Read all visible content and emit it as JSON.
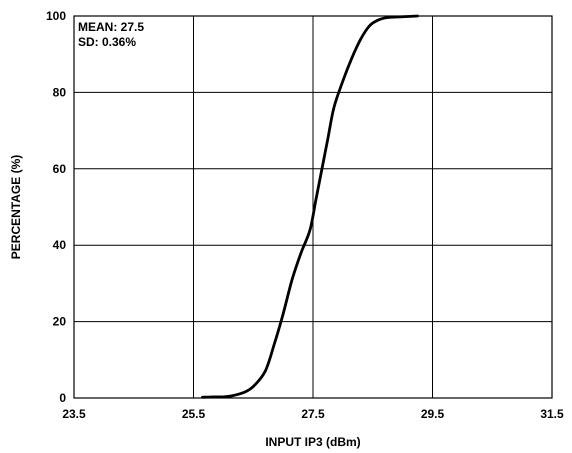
{
  "chart_data": {
    "type": "line",
    "title": "",
    "xlabel": "INPUT IP3 (dBm)",
    "ylabel": "PERCENTAGE (%)",
    "xlim": [
      23.5,
      31.5
    ],
    "ylim": [
      0,
      100
    ],
    "x_ticks": [
      23.5,
      25.5,
      27.5,
      29.5,
      31.5
    ],
    "x_tick_labels": [
      "23.5",
      "25.5",
      "27.5",
      "29.5",
      "31.5"
    ],
    "y_ticks": [
      0,
      20,
      40,
      60,
      80,
      100
    ],
    "y_tick_labels": [
      "0",
      "20",
      "40",
      "60",
      "80",
      "100"
    ],
    "grid": true,
    "annotations": [
      "MEAN: 27.5",
      "SD: 0.36%"
    ],
    "series": [
      {
        "x": [
          25.65,
          25.85,
          26.0,
          26.15,
          26.35,
          26.5,
          26.7,
          26.85,
          27.0,
          27.15,
          27.3,
          27.45,
          27.55,
          27.65,
          27.75,
          27.85,
          28.0,
          28.15,
          28.3,
          28.45,
          28.6,
          28.75,
          29.0,
          29.25
        ],
        "y": [
          0.2,
          0.3,
          0.3,
          0.6,
          1.5,
          3,
          7,
          14,
          22,
          31,
          38,
          44,
          52,
          60,
          68,
          76,
          83,
          89,
          94,
          97.5,
          99,
          99.6,
          99.8,
          100
        ],
        "color": "#000000"
      }
    ]
  }
}
